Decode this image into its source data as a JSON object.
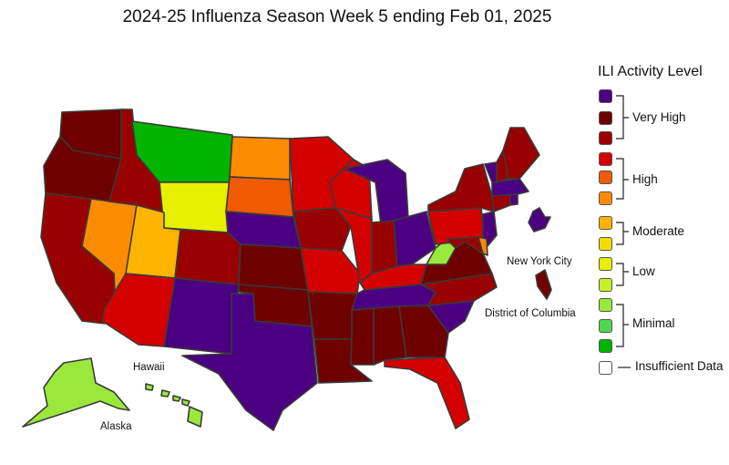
{
  "title": "2024-25 Influenza Season Week 5 ending Feb 01, 2025",
  "legend": {
    "title": "ILI Activity Level",
    "levels": [
      {
        "color": "#4b0082",
        "group": "very_high"
      },
      {
        "color": "#6e0000",
        "group": "very_high"
      },
      {
        "color": "#990000",
        "group": "very_high"
      },
      {
        "color": "#d40000",
        "group": "high"
      },
      {
        "color": "#f05a00",
        "group": "high"
      },
      {
        "color": "#ff8c00",
        "group": "high"
      },
      {
        "color": "#ffb400",
        "group": "moderate"
      },
      {
        "color": "#f5dd00",
        "group": "moderate"
      },
      {
        "color": "#e6f000",
        "group": "low"
      },
      {
        "color": "#c8f028",
        "group": "low"
      },
      {
        "color": "#9be83c",
        "group": "minimal"
      },
      {
        "color": "#4fd84f",
        "group": "minimal"
      },
      {
        "color": "#00b400",
        "group": "minimal"
      },
      {
        "color": "#ffffff",
        "group": "insufficient"
      }
    ],
    "groups": {
      "very_high": "Very High",
      "high": "High",
      "moderate": "Moderate",
      "low": "Low",
      "minimal": "Minimal",
      "insufficient": "Insufficient Data"
    }
  },
  "labels": {
    "hawaii": "Hawaii",
    "alaska": "Alaska",
    "nyc": "New York City",
    "dc": "District of Columbia"
  },
  "states": {
    "WA": "#6e0000",
    "OR": "#6e0000",
    "CA": "#990000",
    "NV": "#ff8c00",
    "ID": "#990000",
    "MT": "#00b400",
    "WY": "#e6f000",
    "UT": "#ffb400",
    "AZ": "#d40000",
    "CO": "#990000",
    "NM": "#4b0082",
    "ND": "#ff8c00",
    "SD": "#f05a00",
    "NE": "#4b0082",
    "KS": "#6e0000",
    "OK": "#6e0000",
    "TX": "#4b0082",
    "MN": "#d40000",
    "IA": "#990000",
    "MO": "#d40000",
    "AR": "#6e0000",
    "LA": "#6e0000",
    "WI": "#d40000",
    "IL": "#d40000",
    "MI": "#4b0082",
    "IN": "#990000",
    "OH": "#4b0082",
    "KY": "#d40000",
    "TN": "#4b0082",
    "MS": "#6e0000",
    "AL": "#6e0000",
    "GA": "#6e0000",
    "FL": "#d40000",
    "SC": "#4b0082",
    "NC": "#990000",
    "VA": "#6e0000",
    "WV": "#9be83c",
    "PA": "#d40000",
    "NY": "#990000",
    "NJ": "#4b0082",
    "DE": "#ff8c00",
    "MD": "#990000",
    "CT": "#990000",
    "RI": "#4b0082",
    "MA": "#4b0082",
    "VT": "#4b0082",
    "NH": "#990000",
    "ME": "#990000",
    "AK": "#9be83c",
    "HI": "#9be83c",
    "NYC": "#4b0082",
    "DC": "#6e0000"
  }
}
